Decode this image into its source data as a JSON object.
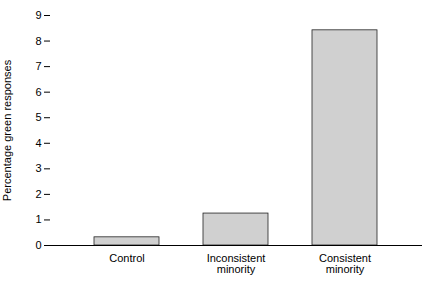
{
  "chart_data": {
    "type": "bar",
    "categories": [
      "Control",
      "Inconsistent\nminority",
      "Consistent\nminority"
    ],
    "values": [
      0.32,
      1.25,
      8.42
    ],
    "ylabel": "Percentage green responses",
    "color": "#d0d0d0",
    "ylim": [
      0,
      9
    ],
    "yticks": [
      0,
      1,
      2,
      3,
      4,
      5,
      6,
      7,
      8,
      9
    ],
    "grid": false
  }
}
